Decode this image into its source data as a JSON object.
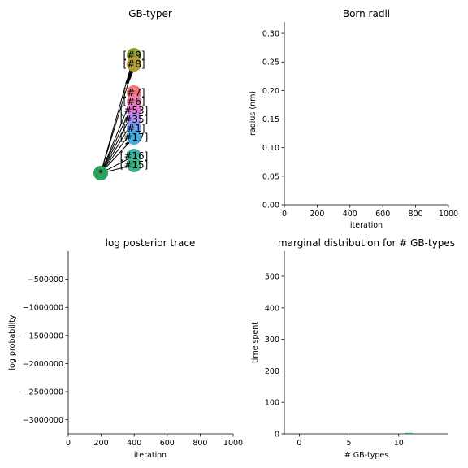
{
  "chart_data": [
    {
      "type": "diagram",
      "title": "GB-typer",
      "root": {
        "label": "*",
        "color": "#2ca25f"
      },
      "nodes": [
        {
          "label": "[#9]",
          "color": "#8da23a"
        },
        {
          "label": "[#8]",
          "color": "#b4a035"
        },
        {
          "label": "[#7]",
          "color": "#f07575"
        },
        {
          "label": "[#6]",
          "color": "#f07ba6"
        },
        {
          "label": "[#53]",
          "color": "#e57ad6"
        },
        {
          "label": "[#35]",
          "color": "#b58ef0"
        },
        {
          "label": "[#1]",
          "color": "#7aa0f0"
        },
        {
          "label": "[#17]",
          "color": "#44aedc"
        },
        {
          "label": "[#16]",
          "color": "#3fb5a0"
        },
        {
          "label": "[#15]",
          "color": "#3caf83"
        }
      ]
    },
    {
      "type": "line",
      "title": "Born radii",
      "xlabel": "iteration",
      "ylabel": "radius (nm)",
      "xlim": [
        0,
        1000
      ],
      "ylim": [
        0,
        0.32
      ],
      "xticks": [
        "0",
        "200",
        "400",
        "600",
        "800",
        "1000"
      ],
      "yticks": [
        "0.00",
        "0.05",
        "0.10",
        "0.15",
        "0.20",
        "0.25",
        "0.30"
      ],
      "series": []
    },
    {
      "type": "line",
      "title": "log posterior trace",
      "xlabel": "iteration",
      "ylabel": "log probability",
      "xlim": [
        0,
        1000
      ],
      "ylim": [
        -3250000,
        0
      ],
      "xticks": [
        "0",
        "200",
        "400",
        "600",
        "800",
        "1000"
      ],
      "yticks": [
        "−500000",
        "−1000000",
        "−1500000",
        "−2000000",
        "−2500000",
        "−3000000"
      ],
      "series": []
    },
    {
      "type": "bar",
      "title": "marginal distribution for # GB-types",
      "xlabel": "# GB-types",
      "ylabel": "time spent",
      "xlim": [
        -1.5,
        15
      ],
      "ylim": [
        0,
        580
      ],
      "xticks": [
        "0",
        "5",
        "10"
      ],
      "yticks": [
        "0",
        "100",
        "200",
        "300",
        "400",
        "500"
      ],
      "bar": {
        "x": 11,
        "value": 1,
        "color": "#2a9d8f"
      }
    }
  ]
}
